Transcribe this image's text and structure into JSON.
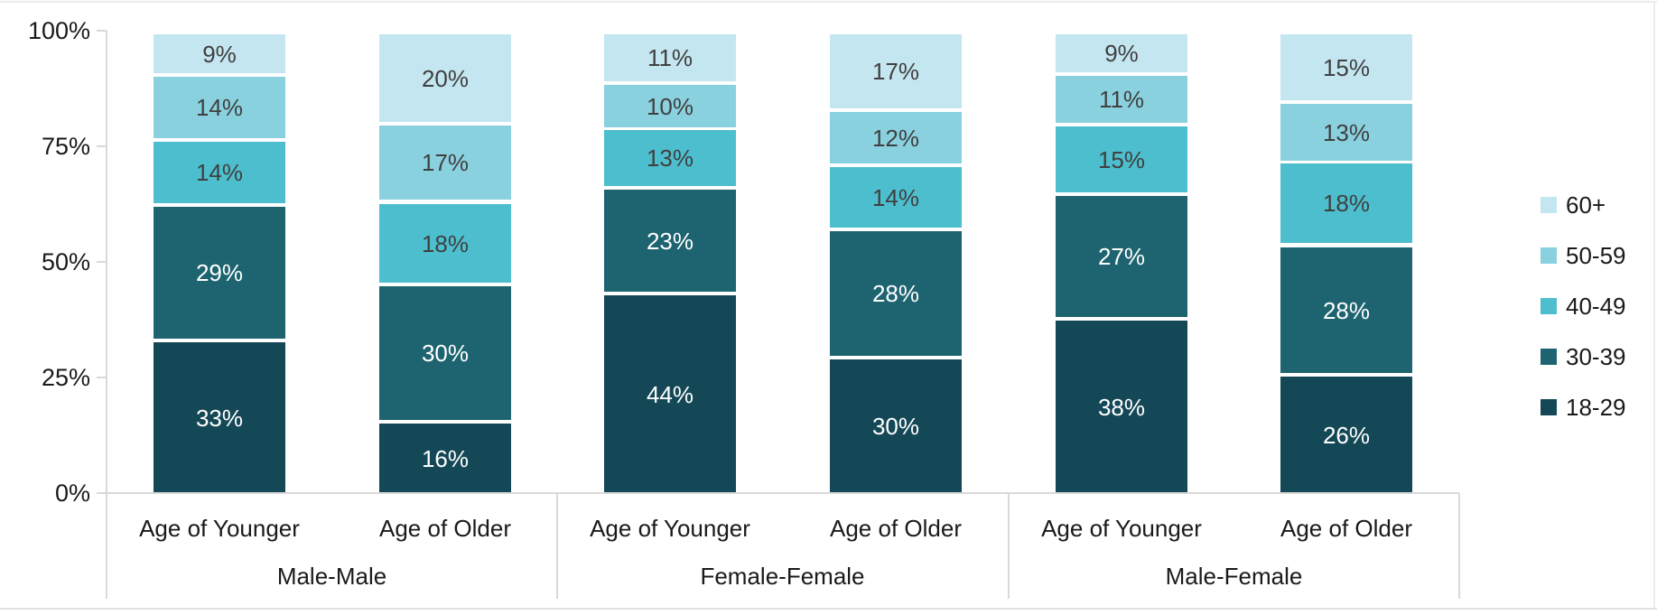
{
  "chart_data": {
    "type": "bar",
    "variant": "100-percent-stacked-column",
    "title": "",
    "xlabel": "",
    "ylabel": "",
    "grid": false,
    "y_axis": {
      "range": [
        0,
        100
      ],
      "ticks_display_top_to_bottom": [
        "100%",
        "75%",
        "50%",
        "25%",
        "0%"
      ],
      "ticks": [
        "0%",
        "25%",
        "50%",
        "75%",
        "100%"
      ]
    },
    "categories": [
      "Age of Younger",
      "Age of Older",
      "Age of Younger",
      "Age of Older",
      "Age of Younger",
      "Age of Older"
    ],
    "group_labels": [
      "Male-Male",
      "Female-Female",
      "Male-Female"
    ],
    "groups": [
      {
        "label": "Male-Male",
        "categories": [
          "Age of Younger",
          "Age of Older"
        ]
      },
      {
        "label": "Female-Female",
        "categories": [
          "Age of Younger",
          "Age of Older"
        ]
      },
      {
        "label": "Male-Female",
        "categories": [
          "Age of Younger",
          "Age of Older"
        ]
      }
    ],
    "series_note": "series listed bottom-to-top within each bar; values are percent per bar in category order",
    "series": [
      {
        "name": "18-29",
        "color": "#154857",
        "label_color": "#ffffff",
        "values": [
          33,
          16,
          44,
          30,
          38,
          26
        ]
      },
      {
        "name": "30-39",
        "color": "#1d6470",
        "label_color": "#ffffff",
        "values": [
          29,
          30,
          23,
          28,
          27,
          28
        ]
      },
      {
        "name": "40-49",
        "color": "#4dbece",
        "label_color": "#404040",
        "values": [
          14,
          18,
          13,
          14,
          15,
          18
        ]
      },
      {
        "name": "50-59",
        "color": "#8ad1df",
        "label_color": "#404040",
        "values": [
          14,
          17,
          10,
          12,
          11,
          13
        ]
      },
      {
        "name": "60+",
        "color": "#c4e6f0",
        "label_color": "#404040",
        "values": [
          9,
          20,
          11,
          17,
          9,
          15
        ]
      }
    ],
    "data_label_format": "{value}%",
    "legend": {
      "position": "right",
      "items_top_to_bottom": [
        {
          "label": "60+",
          "color": "#c4e6f0"
        },
        {
          "label": "50-59",
          "color": "#8ad1df"
        },
        {
          "label": "40-49",
          "color": "#4dbece"
        },
        {
          "label": "30-39",
          "color": "#1d6470"
        },
        {
          "label": "18-29",
          "color": "#154857"
        }
      ]
    },
    "colors": {
      "axis_line": "#d9d9d9",
      "tick_label": "#1a1a1a",
      "light_segment_label": "#404040",
      "dark_segment_label": "#ffffff"
    }
  }
}
